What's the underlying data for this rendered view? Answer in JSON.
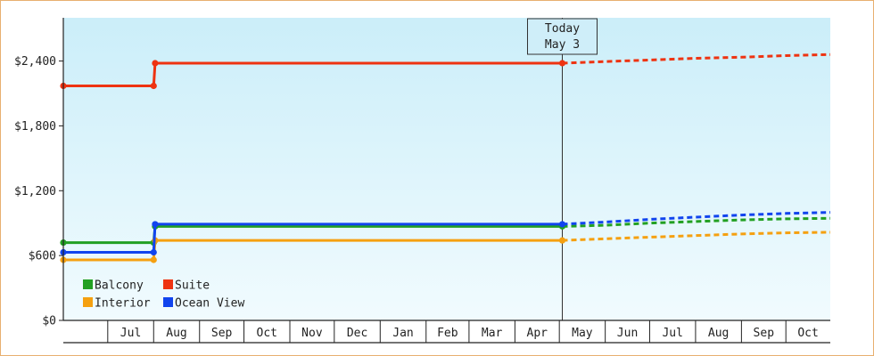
{
  "chart_data": {
    "type": "line",
    "title": "",
    "xlabel": "",
    "ylabel": "",
    "ylim": [
      0,
      2800
    ],
    "y_ticks": [
      {
        "value": 0,
        "label": "$0"
      },
      {
        "value": 600,
        "label": "$600"
      },
      {
        "value": 1200,
        "label": "$1,200"
      },
      {
        "value": 1800,
        "label": "$1,800"
      },
      {
        "value": 2400,
        "label": "$2,400"
      }
    ],
    "x_range": [
      "2023-06-01",
      "2024-10-31"
    ],
    "x_ticks": [
      {
        "date": "2023-06-01",
        "label": ""
      },
      {
        "date": "2023-07-01",
        "label": "Jul"
      },
      {
        "date": "2023-08-01",
        "label": "Aug"
      },
      {
        "date": "2023-09-01",
        "label": "Sep"
      },
      {
        "date": "2023-10-01",
        "label": "Oct"
      },
      {
        "date": "2023-11-01",
        "label": "Nov"
      },
      {
        "date": "2023-12-01",
        "label": "Dec"
      },
      {
        "date": "2024-01-01",
        "label": "Jan"
      },
      {
        "date": "2024-02-01",
        "label": "Feb"
      },
      {
        "date": "2024-03-01",
        "label": "Mar"
      },
      {
        "date": "2024-04-01",
        "label": "Apr"
      },
      {
        "date": "2024-05-01",
        "label": "May"
      },
      {
        "date": "2024-06-01",
        "label": "Jun"
      },
      {
        "date": "2024-07-01",
        "label": "Jul"
      },
      {
        "date": "2024-08-01",
        "label": "Aug"
      },
      {
        "date": "2024-09-01",
        "label": "Sep"
      },
      {
        "date": "2024-10-01",
        "label": "Oct"
      }
    ],
    "today": {
      "date": "2024-05-03",
      "label_line1": "Today",
      "label_line2": "May 3"
    },
    "legend": {
      "placement": "bottom-left"
    },
    "grid": false,
    "series": [
      {
        "name": "Balcony",
        "color": "#22a022",
        "points": [
          [
            "2023-06-01",
            720
          ],
          [
            "2023-08-01",
            720
          ],
          [
            "2023-08-02",
            870
          ],
          [
            "2024-05-03",
            870
          ]
        ],
        "forecast": [
          [
            "2024-05-03",
            870
          ],
          [
            "2024-06-01",
            880
          ],
          [
            "2024-07-01",
            900
          ],
          [
            "2024-08-01",
            915
          ],
          [
            "2024-09-01",
            930
          ],
          [
            "2024-10-01",
            940
          ],
          [
            "2024-10-31",
            945
          ]
        ]
      },
      {
        "name": "Suite",
        "color": "#ee3311",
        "points": [
          [
            "2023-06-01",
            2170
          ],
          [
            "2023-08-01",
            2170
          ],
          [
            "2023-08-02",
            2380
          ],
          [
            "2024-05-03",
            2380
          ]
        ],
        "forecast": [
          [
            "2024-05-03",
            2380
          ],
          [
            "2024-06-01",
            2395
          ],
          [
            "2024-07-01",
            2410
          ],
          [
            "2024-08-01",
            2425
          ],
          [
            "2024-09-01",
            2435
          ],
          [
            "2024-10-01",
            2450
          ],
          [
            "2024-10-31",
            2460
          ]
        ]
      },
      {
        "name": "Interior",
        "color": "#f5a010",
        "points": [
          [
            "2023-06-01",
            560
          ],
          [
            "2023-08-01",
            560
          ],
          [
            "2023-08-02",
            740
          ],
          [
            "2024-05-03",
            740
          ]
        ],
        "forecast": [
          [
            "2024-05-03",
            740
          ],
          [
            "2024-06-01",
            755
          ],
          [
            "2024-07-01",
            770
          ],
          [
            "2024-08-01",
            785
          ],
          [
            "2024-09-01",
            800
          ],
          [
            "2024-10-01",
            810
          ],
          [
            "2024-10-31",
            815
          ]
        ]
      },
      {
        "name": "Ocean View",
        "color": "#1144ee",
        "points": [
          [
            "2023-06-01",
            630
          ],
          [
            "2023-08-01",
            630
          ],
          [
            "2023-08-02",
            890
          ],
          [
            "2024-05-03",
            890
          ]
        ],
        "forecast": [
          [
            "2024-05-03",
            890
          ],
          [
            "2024-06-01",
            910
          ],
          [
            "2024-07-01",
            935
          ],
          [
            "2024-08-01",
            955
          ],
          [
            "2024-09-01",
            975
          ],
          [
            "2024-10-01",
            990
          ],
          [
            "2024-10-31",
            1000
          ]
        ]
      }
    ]
  }
}
